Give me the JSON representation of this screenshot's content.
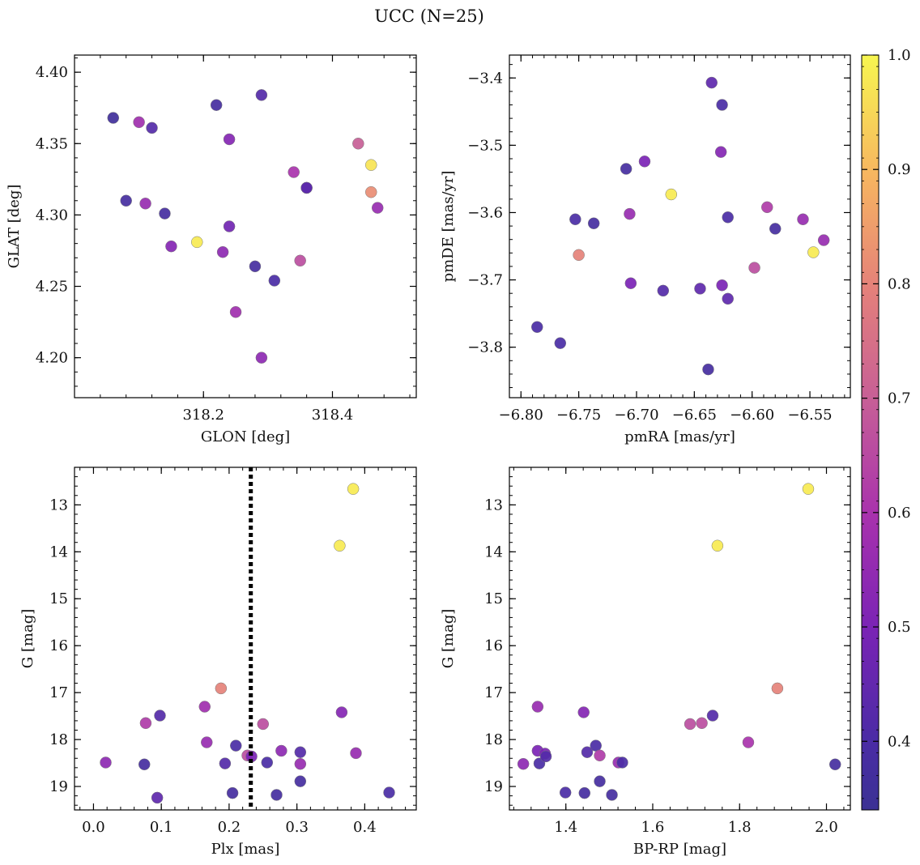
{
  "figure": {
    "title": "UCC (N=25)",
    "colorbar": {
      "range": [
        0.34,
        1.0
      ],
      "ticks": [
        0.4,
        0.5,
        0.6,
        0.7,
        0.8,
        0.9,
        1.0
      ],
      "tick_labels": [
        "0.4",
        "0.5",
        "0.6",
        "0.7",
        "0.8",
        "0.9",
        "1.0"
      ],
      "colormap": "plasma"
    }
  },
  "chart_data": [
    {
      "type": "scatter",
      "xlabel": "GLON [deg]",
      "ylabel": "GLAT [deg]",
      "xlim": [
        318.0,
        318.53
      ],
      "ylim": [
        4.172,
        4.412
      ],
      "xticks": [
        318.2,
        318.4
      ],
      "xtick_labels": [
        "318.2",
        "318.4"
      ],
      "yticks": [
        4.2,
        4.25,
        4.3,
        4.35,
        4.4
      ],
      "ytick_labels": [
        "4.20",
        "4.25",
        "4.30",
        "4.35",
        "4.40"
      ],
      "points": [
        {
          "x": 318.06,
          "y": 4.368,
          "c": 0.36
        },
        {
          "x": 318.1,
          "y": 4.365,
          "c": 0.58
        },
        {
          "x": 318.12,
          "y": 4.361,
          "c": 0.42
        },
        {
          "x": 318.08,
          "y": 4.31,
          "c": 0.38
        },
        {
          "x": 318.11,
          "y": 4.308,
          "c": 0.56
        },
        {
          "x": 318.14,
          "y": 4.301,
          "c": 0.38
        },
        {
          "x": 318.15,
          "y": 4.278,
          "c": 0.52
        },
        {
          "x": 318.19,
          "y": 4.281,
          "c": 0.98
        },
        {
          "x": 318.22,
          "y": 4.377,
          "c": 0.38
        },
        {
          "x": 318.24,
          "y": 4.353,
          "c": 0.52
        },
        {
          "x": 318.24,
          "y": 4.292,
          "c": 0.48
        },
        {
          "x": 318.23,
          "y": 4.274,
          "c": 0.54
        },
        {
          "x": 318.25,
          "y": 4.232,
          "c": 0.58
        },
        {
          "x": 318.29,
          "y": 4.384,
          "c": 0.42
        },
        {
          "x": 318.28,
          "y": 4.264,
          "c": 0.38
        },
        {
          "x": 318.31,
          "y": 4.254,
          "c": 0.4
        },
        {
          "x": 318.29,
          "y": 4.2,
          "c": 0.54
        },
        {
          "x": 318.34,
          "y": 4.33,
          "c": 0.6
        },
        {
          "x": 318.35,
          "y": 4.268,
          "c": 0.66
        },
        {
          "x": 318.36,
          "y": 4.319,
          "c": 0.38
        },
        {
          "x": 318.36,
          "y": 4.319,
          "c": 0.44
        },
        {
          "x": 318.44,
          "y": 4.35,
          "c": 0.7
        },
        {
          "x": 318.46,
          "y": 4.335,
          "c": 0.97
        },
        {
          "x": 318.46,
          "y": 4.316,
          "c": 0.82
        },
        {
          "x": 318.47,
          "y": 4.305,
          "c": 0.56
        }
      ]
    },
    {
      "type": "scatter",
      "xlabel": "pmRA [mas/yr]",
      "ylabel": "pmDE [mas/yr]",
      "xlim": [
        -6.81,
        -6.515
      ],
      "ylim": [
        -3.875,
        -3.366
      ],
      "xticks": [
        -6.8,
        -6.75,
        -6.7,
        -6.65,
        -6.6,
        -6.55
      ],
      "xtick_labels": [
        "−6.80",
        "−6.75",
        "−6.70",
        "−6.65",
        "−6.60",
        "−6.55"
      ],
      "yticks": [
        -3.8,
        -3.7,
        -3.6,
        -3.5,
        -3.4
      ],
      "ytick_labels": [
        "−3.8",
        "−3.7",
        "−3.6",
        "−3.5",
        "−3.4"
      ],
      "points": [
        {
          "x": -6.786,
          "y": -3.77,
          "c": 0.4
        },
        {
          "x": -6.766,
          "y": -3.794,
          "c": 0.4
        },
        {
          "x": -6.753,
          "y": -3.61,
          "c": 0.4
        },
        {
          "x": -6.75,
          "y": -3.663,
          "c": 0.8
        },
        {
          "x": -6.737,
          "y": -3.616,
          "c": 0.38
        },
        {
          "x": -6.709,
          "y": -3.535,
          "c": 0.38
        },
        {
          "x": -6.706,
          "y": -3.602,
          "c": 0.56
        },
        {
          "x": -6.705,
          "y": -3.705,
          "c": 0.5
        },
        {
          "x": -6.693,
          "y": -3.524,
          "c": 0.5
        },
        {
          "x": -6.677,
          "y": -3.716,
          "c": 0.42
        },
        {
          "x": -6.67,
          "y": -3.573,
          "c": 0.98
        },
        {
          "x": -6.645,
          "y": -3.713,
          "c": 0.44
        },
        {
          "x": -6.638,
          "y": -3.833,
          "c": 0.38
        },
        {
          "x": -6.635,
          "y": -3.407,
          "c": 0.44
        },
        {
          "x": -6.626,
          "y": -3.44,
          "c": 0.4
        },
        {
          "x": -6.627,
          "y": -3.51,
          "c": 0.52
        },
        {
          "x": -6.626,
          "y": -3.708,
          "c": 0.5
        },
        {
          "x": -6.621,
          "y": -3.607,
          "c": 0.4
        },
        {
          "x": -6.621,
          "y": -3.728,
          "c": 0.44
        },
        {
          "x": -6.598,
          "y": -3.682,
          "c": 0.66
        },
        {
          "x": -6.587,
          "y": -3.592,
          "c": 0.62
        },
        {
          "x": -6.58,
          "y": -3.624,
          "c": 0.38
        },
        {
          "x": -6.556,
          "y": -3.61,
          "c": 0.56
        },
        {
          "x": -6.547,
          "y": -3.659,
          "c": 0.98
        },
        {
          "x": -6.538,
          "y": -3.641,
          "c": 0.56
        }
      ]
    },
    {
      "type": "scatter",
      "xlabel": "Plx [mas]",
      "ylabel": "G [mag]",
      "xlim": [
        -0.028,
        0.476
      ],
      "ylim": [
        19.5,
        12.2
      ],
      "y_inverted": true,
      "xticks": [
        0.0,
        0.1,
        0.2,
        0.3,
        0.4
      ],
      "xtick_labels": [
        "0.0",
        "0.1",
        "0.2",
        "0.3",
        "0.4"
      ],
      "yticks": [
        13,
        14,
        15,
        16,
        17,
        18,
        19
      ],
      "ytick_labels": [
        "13",
        "14",
        "15",
        "16",
        "17",
        "18",
        "19"
      ],
      "vline": {
        "x": 0.232,
        "style": "dotted",
        "color": "#000000"
      },
      "points": [
        {
          "x": 0.018,
          "y": 18.49,
          "c": 0.54
        },
        {
          "x": 0.075,
          "y": 18.53,
          "c": 0.38
        },
        {
          "x": 0.077,
          "y": 17.65,
          "c": 0.62
        },
        {
          "x": 0.098,
          "y": 17.49,
          "c": 0.42
        },
        {
          "x": 0.094,
          "y": 19.24,
          "c": 0.44
        },
        {
          "x": 0.164,
          "y": 17.3,
          "c": 0.58
        },
        {
          "x": 0.167,
          "y": 18.06,
          "c": 0.56
        },
        {
          "x": 0.188,
          "y": 16.91,
          "c": 0.8
        },
        {
          "x": 0.194,
          "y": 18.51,
          "c": 0.42
        },
        {
          "x": 0.205,
          "y": 19.14,
          "c": 0.38
        },
        {
          "x": 0.21,
          "y": 18.13,
          "c": 0.4
        },
        {
          "x": 0.227,
          "y": 18.34,
          "c": 0.66
        },
        {
          "x": 0.233,
          "y": 18.36,
          "c": 0.5
        },
        {
          "x": 0.25,
          "y": 17.67,
          "c": 0.66
        },
        {
          "x": 0.256,
          "y": 18.49,
          "c": 0.4
        },
        {
          "x": 0.27,
          "y": 19.18,
          "c": 0.38
        },
        {
          "x": 0.277,
          "y": 18.24,
          "c": 0.54
        },
        {
          "x": 0.305,
          "y": 18.27,
          "c": 0.42
        },
        {
          "x": 0.305,
          "y": 18.52,
          "c": 0.56
        },
        {
          "x": 0.305,
          "y": 18.89,
          "c": 0.38
        },
        {
          "x": 0.363,
          "y": 13.87,
          "c": 0.98
        },
        {
          "x": 0.366,
          "y": 17.42,
          "c": 0.52
        },
        {
          "x": 0.383,
          "y": 12.66,
          "c": 0.98
        },
        {
          "x": 0.387,
          "y": 18.29,
          "c": 0.56
        },
        {
          "x": 0.436,
          "y": 19.13,
          "c": 0.4
        }
      ]
    },
    {
      "type": "scatter",
      "xlabel": "BP-RP [mag]",
      "ylabel": "G [mag]",
      "xlim": [
        1.27,
        2.055
      ],
      "ylim": [
        19.5,
        12.2
      ],
      "y_inverted": true,
      "xticks": [
        1.4,
        1.6,
        1.8,
        2.0
      ],
      "xtick_labels": [
        "1.4",
        "1.6",
        "1.8",
        "2.0"
      ],
      "yticks": [
        13,
        14,
        15,
        16,
        17,
        18,
        19
      ],
      "ytick_labels": [
        "13",
        "14",
        "15",
        "16",
        "17",
        "18",
        "19"
      ],
      "points": [
        {
          "x": 1.302,
          "y": 18.52,
          "c": 0.54
        },
        {
          "x": 1.335,
          "y": 17.3,
          "c": 0.56
        },
        {
          "x": 1.335,
          "y": 18.24,
          "c": 0.5
        },
        {
          "x": 1.339,
          "y": 18.51,
          "c": 0.4
        },
        {
          "x": 1.352,
          "y": 18.3,
          "c": 0.5
        },
        {
          "x": 1.354,
          "y": 18.36,
          "c": 0.42
        },
        {
          "x": 1.399,
          "y": 19.13,
          "c": 0.4
        },
        {
          "x": 1.441,
          "y": 17.42,
          "c": 0.52
        },
        {
          "x": 1.443,
          "y": 19.14,
          "c": 0.38
        },
        {
          "x": 1.449,
          "y": 18.27,
          "c": 0.42
        },
        {
          "x": 1.469,
          "y": 18.13,
          "c": 0.4
        },
        {
          "x": 1.478,
          "y": 18.34,
          "c": 0.62
        },
        {
          "x": 1.478,
          "y": 18.89,
          "c": 0.38
        },
        {
          "x": 1.506,
          "y": 19.18,
          "c": 0.38
        },
        {
          "x": 1.521,
          "y": 18.49,
          "c": 0.56
        },
        {
          "x": 1.53,
          "y": 18.49,
          "c": 0.4
        },
        {
          "x": 1.686,
          "y": 17.67,
          "c": 0.66
        },
        {
          "x": 1.713,
          "y": 17.65,
          "c": 0.66
        },
        {
          "x": 1.738,
          "y": 17.49,
          "c": 0.42
        },
        {
          "x": 1.749,
          "y": 13.87,
          "c": 0.98
        },
        {
          "x": 1.82,
          "y": 18.06,
          "c": 0.6
        },
        {
          "x": 1.887,
          "y": 16.91,
          "c": 0.8
        },
        {
          "x": 1.958,
          "y": 12.66,
          "c": 0.98
        },
        {
          "x": 2.02,
          "y": 18.53,
          "c": 0.38
        }
      ]
    }
  ]
}
